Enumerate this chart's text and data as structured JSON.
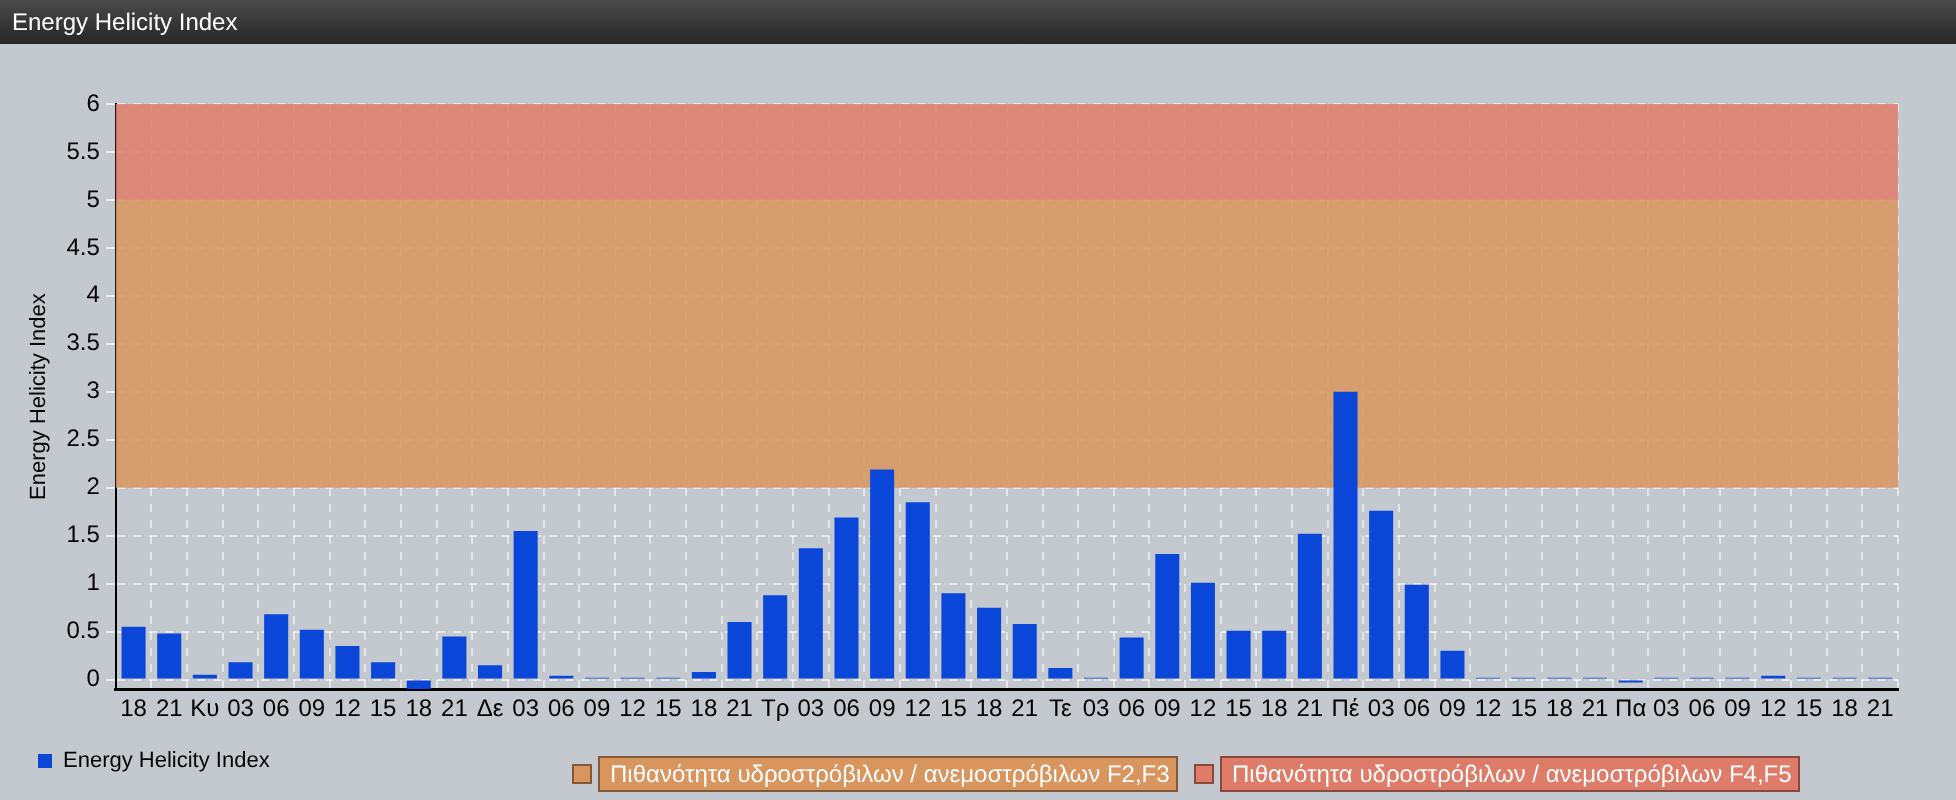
{
  "chart_data": {
    "type": "bar",
    "title": "Energy Helicity Index",
    "ylabel": "Energy Helicity Index",
    "categories": [
      "18",
      "21",
      "Κυ",
      "03",
      "06",
      "09",
      "12",
      "15",
      "18",
      "21",
      "Δε",
      "03",
      "06",
      "09",
      "12",
      "15",
      "18",
      "21",
      "Τρ",
      "03",
      "06",
      "09",
      "12",
      "15",
      "18",
      "21",
      "Τε",
      "03",
      "06",
      "09",
      "12",
      "15",
      "18",
      "21",
      "Πέ",
      "03",
      "06",
      "09",
      "12",
      "15",
      "18",
      "21",
      "Πα",
      "03",
      "06",
      "09",
      "12",
      "15",
      "18",
      "21"
    ],
    "series": [
      {
        "name": "Energy Helicity Index",
        "color": "#0a47d9",
        "values": [
          0.55,
          0.48,
          0.05,
          0.18,
          0.68,
          0.52,
          0.35,
          0.18,
          -0.1,
          0.45,
          0.15,
          1.55,
          0.04,
          0.02,
          0.02,
          0.02,
          0.08,
          0.6,
          0.88,
          1.37,
          1.69,
          2.19,
          1.85,
          0.9,
          0.75,
          0.58,
          0.12,
          0.02,
          0.44,
          1.31,
          1.01,
          0.51,
          0.51,
          1.52,
          3.0,
          1.76,
          0.99,
          0.3,
          0.02,
          0.02,
          0.02,
          0.02,
          -0.03,
          0.02,
          0.02,
          0.02,
          0.04,
          0.02,
          0.02,
          0.02
        ]
      }
    ],
    "ylim": [
      -0.1,
      6
    ],
    "yticks": [
      0,
      0.5,
      1,
      1.5,
      2,
      2.5,
      3,
      3.5,
      4,
      4.5,
      5,
      5.5,
      6
    ],
    "bands": [
      {
        "axis": "y",
        "from": 2,
        "to": 5,
        "label": "Πιθανότητα υδροστρόβιλων / ανεμοστρόβιλων F2,F3",
        "color": "#d9955e"
      },
      {
        "axis": "y",
        "from": 5,
        "to": 6,
        "label": "Πιθανότητα υδροστρόβιλων / ανεμοστρόβιλων F4,F5",
        "color": "#df7c69"
      }
    ],
    "grid": true,
    "legend": "bottom left"
  }
}
